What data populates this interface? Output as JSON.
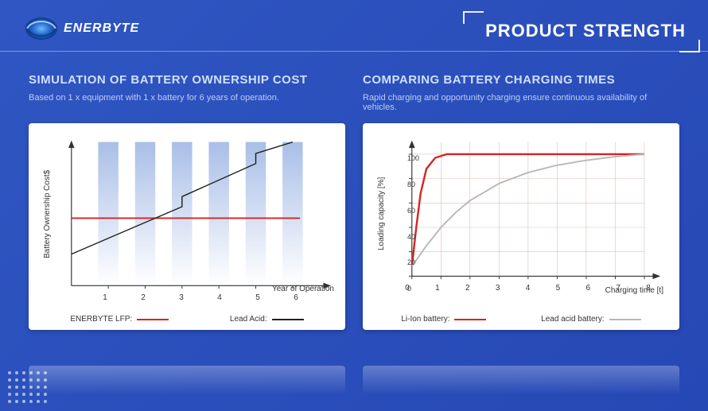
{
  "brand": "ENERBYTE",
  "page_title": "PRODUCT STRENGTH",
  "background_color": "#2f56c2",
  "watermark_text": "ENERBYTE",
  "panels": {
    "left": {
      "heading": "SIMULATION OF BATTERY OWNERSHIP COST",
      "heading_color": "#cfe0ff",
      "subheading": "Based on 1 x equipment with 1 x battery for 6 years of operation.",
      "sub_color": "#b9cdf5",
      "chart": {
        "type": "line_over_bars",
        "y_label": "Battery Ownership Cost$",
        "x_label": "Year of Operation",
        "x_ticks": [
          "1",
          "2",
          "3",
          "4",
          "5",
          "6"
        ],
        "x_range": [
          0,
          7
        ],
        "y_range": [
          0,
          100
        ],
        "bars": {
          "positions": [
            1,
            2,
            3,
            4,
            5,
            6
          ],
          "height_frac": 1.0,
          "width_frac": 0.55,
          "fill_top": "#9ab3e3",
          "fill_bottom": "#ffffff"
        },
        "series": [
          {
            "name": "ENERBYTE LFP",
            "color": "#d62424",
            "line_width": 2,
            "points": [
              [
                0,
                47
              ],
              [
                6.2,
                47
              ]
            ]
          },
          {
            "name": "Lead Acid",
            "color": "#222222",
            "line_width": 1.5,
            "points": [
              [
                0,
                22
              ],
              [
                3,
                55
              ],
              [
                3,
                62
              ],
              [
                5,
                85
              ],
              [
                5,
                92
              ],
              [
                6,
                100
              ]
            ]
          }
        ],
        "axis_color": "#333333",
        "arrowheads": true,
        "legend": [
          {
            "label": "ENERBYTE LFP:",
            "color": "#d62424"
          },
          {
            "label": "Lead Acid:",
            "color": "#222222"
          }
        ],
        "card_bg": "#ffffff"
      }
    },
    "right": {
      "heading": "COMPARING BATTERY CHARGING TIMES",
      "heading_color": "#cfe0ff",
      "subheading": "Rapid charging and opportunity charging ensure continuous availability of vehicles.",
      "sub_color": "#b9cdf5",
      "chart": {
        "type": "line",
        "y_label": "Loading capacity [%]",
        "x_label": "Charging time [t]",
        "x_ticks": [
          "0",
          "1",
          "2",
          "3",
          "4",
          "5",
          "6",
          "7",
          "8"
        ],
        "y_ticks": [
          "0",
          "20",
          "40",
          "60",
          "80",
          "100"
        ],
        "x_range": [
          0,
          8.5
        ],
        "y_range": [
          0,
          110
        ],
        "grid": {
          "show": true,
          "color": "#e6b9b9",
          "x_lines": [
            1,
            2,
            3,
            4,
            5,
            6,
            7,
            8
          ],
          "y_lines": [
            20,
            40,
            60,
            80,
            100
          ]
        },
        "series": [
          {
            "name": "Li-Ion battery",
            "color": "#d62424",
            "line_width": 2.5,
            "points": [
              [
                0,
                8
              ],
              [
                0.15,
                40
              ],
              [
                0.3,
                68
              ],
              [
                0.5,
                88
              ],
              [
                0.8,
                97
              ],
              [
                1.2,
                100
              ],
              [
                8,
                100
              ]
            ]
          },
          {
            "name": "Lead acid battery",
            "color": "#b7b7b7",
            "line_width": 2,
            "points": [
              [
                0,
                8
              ],
              [
                0.5,
                25
              ],
              [
                1,
                40
              ],
              [
                1.5,
                52
              ],
              [
                2,
                62
              ],
              [
                3,
                76
              ],
              [
                4,
                85
              ],
              [
                5,
                91
              ],
              [
                6,
                95
              ],
              [
                7,
                98
              ],
              [
                8,
                100
              ]
            ]
          }
        ],
        "axis_color": "#333333",
        "arrowheads": true,
        "legend": [
          {
            "label": "Li-Ion battery:",
            "color": "#d62424"
          },
          {
            "label": "Lead acid battery:",
            "color": "#b7b7b7"
          }
        ],
        "card_bg": "#ffffff"
      }
    }
  },
  "fonts": {
    "heading_size_pt": 15,
    "sub_size_pt": 11,
    "axis_size_pt": 10
  }
}
